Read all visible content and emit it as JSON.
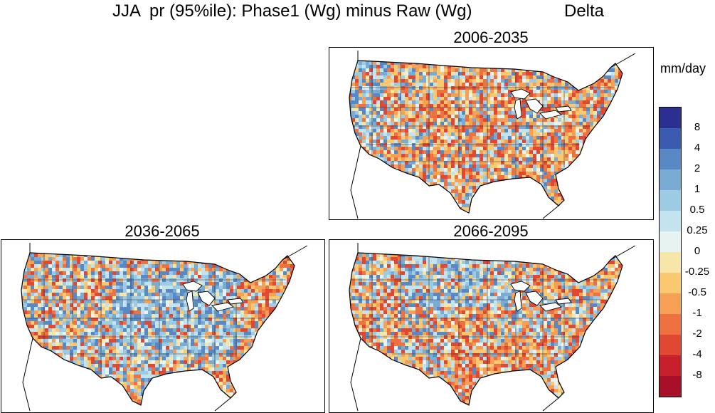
{
  "figure": {
    "title": "JJA  pr (95%ile): Phase1 (Wg) minus Raw (Wg)",
    "title_right": "Delta"
  },
  "panels": [
    {
      "label": "2006-2035"
    },
    {
      "label": "2036-2065"
    },
    {
      "label": "2066-2095"
    }
  ],
  "colorbar": {
    "units": "mm/day",
    "labels": [
      "8",
      "4",
      "2",
      "1",
      "0.5",
      "0.25",
      "0",
      "-0.25",
      "-0.5",
      "-1",
      "-2",
      "-4",
      "-8"
    ],
    "colors": [
      "#2b2f8f",
      "#3b5bb0",
      "#5889c5",
      "#7aabd3",
      "#9ccbe3",
      "#c3e3ef",
      "#e6f3f1",
      "#f6e6a8",
      "#f9c86f",
      "#f6a056",
      "#ee7142",
      "#e04832",
      "#c7202c",
      "#a8102a"
    ]
  }
}
